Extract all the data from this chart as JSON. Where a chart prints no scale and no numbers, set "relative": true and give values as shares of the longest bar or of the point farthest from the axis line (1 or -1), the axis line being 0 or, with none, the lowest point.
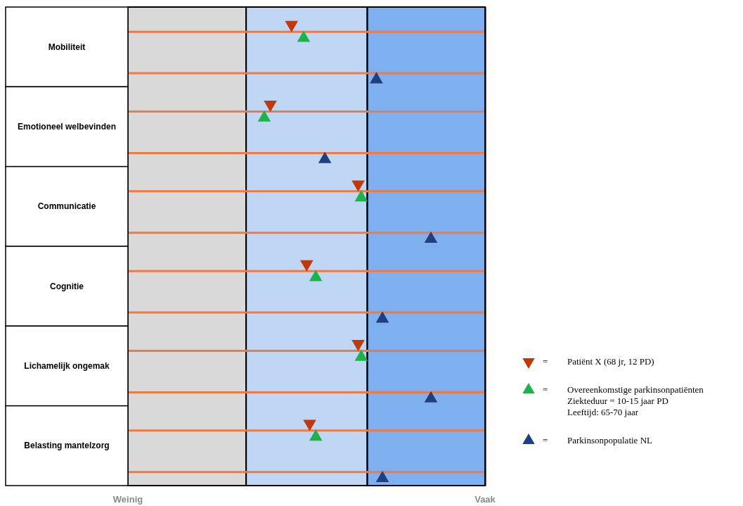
{
  "chart_data": {
    "type": "scatter",
    "orientation": "horizontal",
    "relative": true,
    "categories": [
      "Mobiliteit",
      "Emotioneel welbevinden",
      "Communicatie",
      "Cognitie",
      "Lichamelijk ongemak",
      "Belasting mantelzorg"
    ],
    "bands": [
      {
        "axis": "x",
        "from": 0,
        "to": 0.39,
        "color": "#d9d9d9"
      },
      {
        "axis": "x",
        "from": 0.39,
        "to": 0.79,
        "color": "#c0d6f5"
      },
      {
        "axis": "x",
        "from": 0.79,
        "to": 1.18,
        "color": "#7eb0ef"
      }
    ],
    "series": [
      {
        "name": "Patiënt X (68 jr, 12 PD)",
        "color": "#c0390b",
        "marker": "triangle",
        "values": [
          0.54,
          0.47,
          0.76,
          0.59,
          0.76,
          0.6
        ]
      },
      {
        "name": "Overeenkomstige parkinsonpatiënten\nZiekteduur = 10-15 jaar PD\nLeeftijd: 65-70 jaar",
        "color": "#1db34a",
        "marker": "triangle",
        "values": [
          0.58,
          0.45,
          0.77,
          0.62,
          0.77,
          0.62
        ]
      },
      {
        "name": "Parkinsonpopulatie NL",
        "color": "#1f3f7f",
        "marker": "triangle",
        "values": [
          0.82,
          0.65,
          1,
          0.84,
          1,
          0.84
        ]
      }
    ],
    "annotations": [
      "Weinig",
      "Vaak",
      "=",
      "=",
      "="
    ],
    "ref_lines": [
      {
        "axis": "y",
        "value": "Mobiliteit",
        "color": "#f07a45"
      },
      {
        "axis": "y",
        "value": "Mobiliteit",
        "color": "#f07a45"
      },
      {
        "axis": "y",
        "value": "Emotioneel welbevinden",
        "color": "#f07a45"
      },
      {
        "axis": "y",
        "value": "Emotioneel welbevinden",
        "color": "#f07a45"
      },
      {
        "axis": "y",
        "value": "Communicatie",
        "color": "#f07a45"
      },
      {
        "axis": "y",
        "value": "Communicatie",
        "color": "#f07a45"
      },
      {
        "axis": "y",
        "value": "Cognitie",
        "color": "#f07a45"
      },
      {
        "axis": "y",
        "value": "Cognitie",
        "color": "#f07a45"
      },
      {
        "axis": "y",
        "value": "Lichamelijk ongemak",
        "color": "#f07a45"
      },
      {
        "axis": "y",
        "value": "Lichamelijk ongemak",
        "color": "#f07a45"
      },
      {
        "axis": "y",
        "value": "Belasting mantelzorg",
        "color": "#f07a45"
      },
      {
        "axis": "y",
        "value": "Belasting mantelzorg",
        "color": "#f07a45"
      }
    ],
    "legend": "right"
  }
}
